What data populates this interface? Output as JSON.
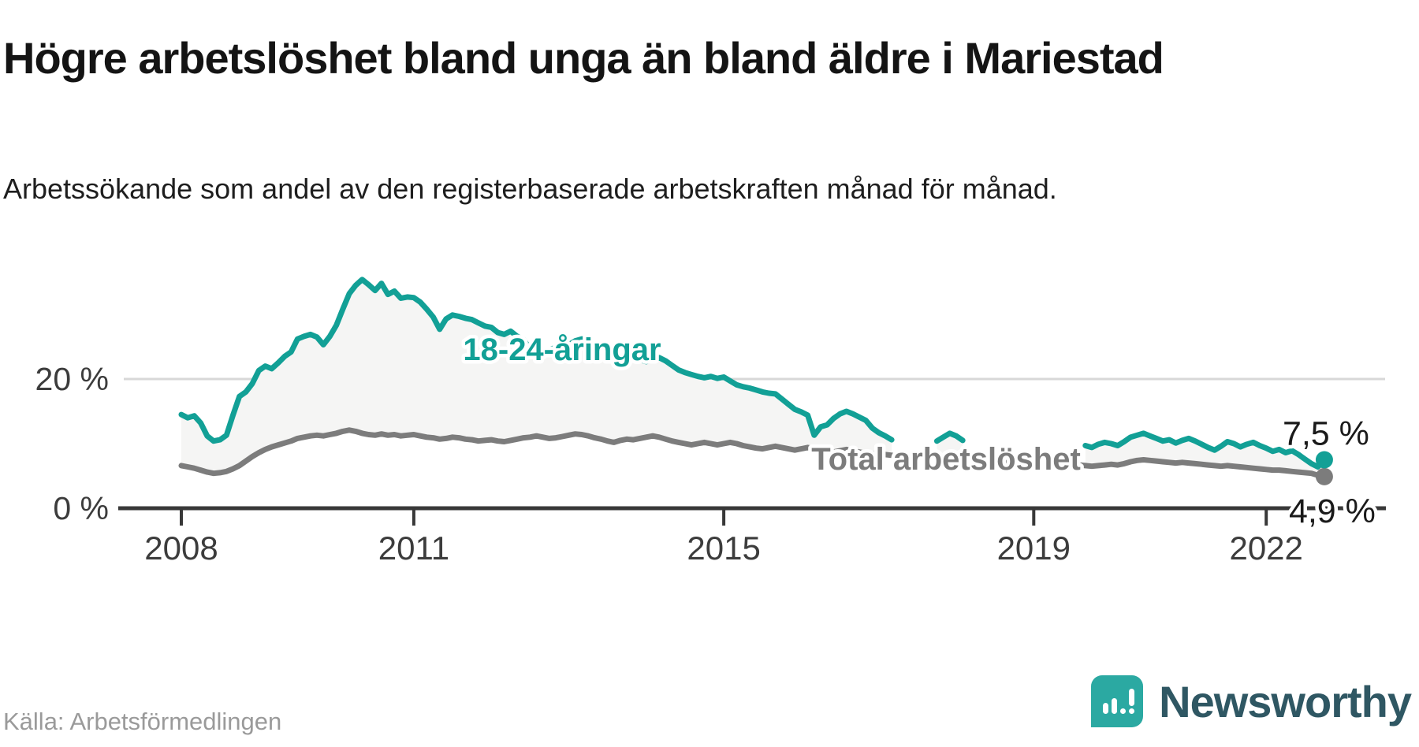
{
  "header": {
    "title": "Högre arbetslöshet bland unga än bland äldre i Mariestad",
    "subtitle": "Arbetssökande som andel av den registerbaserade arbetskraften månad för månad."
  },
  "footer": {
    "source": "Källa: Arbetsförmedlingen",
    "brand": "Newsworthy"
  },
  "colors": {
    "accent_teal": "#12A096",
    "series_gray": "#7c7c7c",
    "band_fill": "#f5f5f4",
    "gridline": "#d8d8d8",
    "axis": "#383838",
    "logo_square": "#2BA9A2",
    "wordmark": "#2F5763"
  },
  "chart_data": {
    "type": "line",
    "title": "Högre arbetslöshet bland unga än bland äldre i Mariestad",
    "xlabel": "",
    "ylabel": "Arbetssökande som andel av den registerbaserade arbetskraften",
    "unit": "%",
    "x_ticks": [
      2008,
      2011,
      2015,
      2019,
      2022
    ],
    "y_ticks": [
      {
        "value": 20,
        "label": "20 %",
        "gridline": true
      },
      {
        "value": 0,
        "label": "0 %",
        "gridline": false
      }
    ],
    "ylim": [
      0,
      36
    ],
    "x_range_years": [
      2008.0,
      2022.83
    ],
    "legend_position": "inline-labels",
    "grid": "horizontal-only",
    "series": [
      {
        "name": "18-24-åringar",
        "color": "#12A096",
        "end_value": 7.5,
        "end_label": "7,5 %",
        "segments": [
          {
            "start_year": 2008,
            "start_month": 1,
            "values": [
              14.5,
              14.0,
              14.3,
              13.2,
              11.2,
              10.4,
              10.6,
              11.3,
              14.4,
              17.3,
              18.0,
              19.3,
              21.3,
              22.0,
              21.6,
              22.5,
              23.5,
              24.2,
              26.2,
              26.6,
              26.9,
              26.5,
              25.3,
              26.6,
              28.3,
              30.8,
              33.2,
              34.5,
              35.4,
              34.6,
              33.7,
              34.8,
              33.1,
              33.6,
              32.5,
              32.7,
              32.6,
              31.9,
              30.8,
              29.6,
              27.7,
              29.3,
              29.9,
              29.7,
              29.4,
              29.2,
              28.7,
              28.2,
              28.0,
              27.2,
              26.9,
              27.4,
              26.6,
              26.1,
              24.6,
              23.3,
              23.9,
              24.5,
              24.9,
              25.1,
              25.3,
              25.9,
              26.2,
              25.5,
              24.8,
              24.3,
              23.6,
              23.2,
              23.6,
              23.9,
              23.4,
              23.0,
              22.7,
              23.1,
              23.3,
              22.8,
              22.1,
              21.4,
              21.0,
              20.7,
              20.4,
              20.2,
              20.4,
              20.1,
              20.3,
              19.7,
              19.1,
              18.8,
              18.6,
              18.3,
              18.0,
              17.8,
              17.7,
              16.9,
              16.1,
              15.3,
              14.9,
              14.4,
              11.3,
              12.6,
              12.9,
              13.9,
              14.6,
              15.0,
              14.6,
              14.1,
              13.6,
              12.4,
              11.7,
              11.2,
              10.6
            ]
          },
          {
            "start_year": 2017,
            "start_month": 10,
            "values": [
              10.4,
              11.0,
              11.6,
              11.2,
              10.5
            ]
          },
          {
            "start_year": 2019,
            "start_month": 9,
            "values": [
              9.7,
              9.4,
              9.9,
              10.2,
              10.0,
              9.7,
              10.3,
              11.0,
              11.3,
              11.6,
              11.2,
              10.8,
              10.4,
              10.6,
              10.1,
              10.5,
              10.8,
              10.4,
              9.9,
              9.4,
              9.0,
              9.6,
              10.3,
              10.0,
              9.5,
              9.9,
              10.2,
              9.7,
              9.3,
              8.8,
              9.1,
              8.6,
              8.9,
              8.3,
              7.6,
              6.9,
              6.4,
              7.5
            ]
          }
        ]
      },
      {
        "name": "Total arbetslöshet",
        "color": "#7c7c7c",
        "end_value": 4.9,
        "end_label": "4,9 %",
        "segments": [
          {
            "start_year": 2008,
            "start_month": 1,
            "values": [
              6.6,
              6.4,
              6.2,
              5.9,
              5.6,
              5.4,
              5.5,
              5.7,
              6.1,
              6.6,
              7.3,
              8.0,
              8.6,
              9.1,
              9.5,
              9.8,
              10.1,
              10.4,
              10.8,
              11.0,
              11.2,
              11.3,
              11.2,
              11.4,
              11.6,
              11.9,
              12.1,
              11.9,
              11.6,
              11.4,
              11.3,
              11.5,
              11.3,
              11.4,
              11.2,
              11.3,
              11.4,
              11.2,
              11.0,
              10.9,
              10.7,
              10.8,
              11.0,
              10.9,
              10.7,
              10.6,
              10.4,
              10.5,
              10.6,
              10.4,
              10.3,
              10.5,
              10.7,
              10.9,
              11.0,
              11.2,
              11.0,
              10.8,
              10.9,
              11.1,
              11.3,
              11.5,
              11.4,
              11.2,
              10.9,
              10.7,
              10.4,
              10.2,
              10.5,
              10.7,
              10.6,
              10.8,
              11.0,
              11.2,
              11.0,
              10.7,
              10.4,
              10.2,
              10.0,
              9.8,
              10.0,
              10.2,
              10.0,
              9.8,
              10.0,
              10.2,
              10.0,
              9.7,
              9.5,
              9.3,
              9.2,
              9.4,
              9.6,
              9.4,
              9.2,
              9.0,
              9.2,
              9.4,
              9.2,
              9.0,
              8.8,
              8.7,
              8.9,
              9.1,
              8.9,
              8.7,
              8.5,
              8.4,
              8.5,
              8.3,
              8.2,
              8.0,
              7.9,
              7.8,
              7.9,
              8.0,
              7.8,
              7.7,
              7.6,
              7.7,
              7.6,
              7.5,
              7.4,
              7.2,
              7.1,
              7.0,
              7.1,
              7.2,
              7.0,
              6.9,
              6.8,
              6.9,
              6.8,
              6.9,
              6.8,
              6.7,
              6.6,
              6.5,
              6.6,
              6.7,
              6.6,
              6.5,
              6.6,
              6.7,
              6.8,
              6.7,
              6.9,
              7.2,
              7.4,
              7.5,
              7.4,
              7.3,
              7.2,
              7.1,
              7.0,
              7.1,
              7.0,
              6.9,
              6.8,
              6.7,
              6.6,
              6.5,
              6.6,
              6.5,
              6.4,
              6.3,
              6.2,
              6.1,
              6.0,
              5.9,
              5.9,
              5.8,
              5.7,
              5.6,
              5.5,
              5.4,
              5.1,
              4.9
            ]
          }
        ]
      }
    ]
  }
}
